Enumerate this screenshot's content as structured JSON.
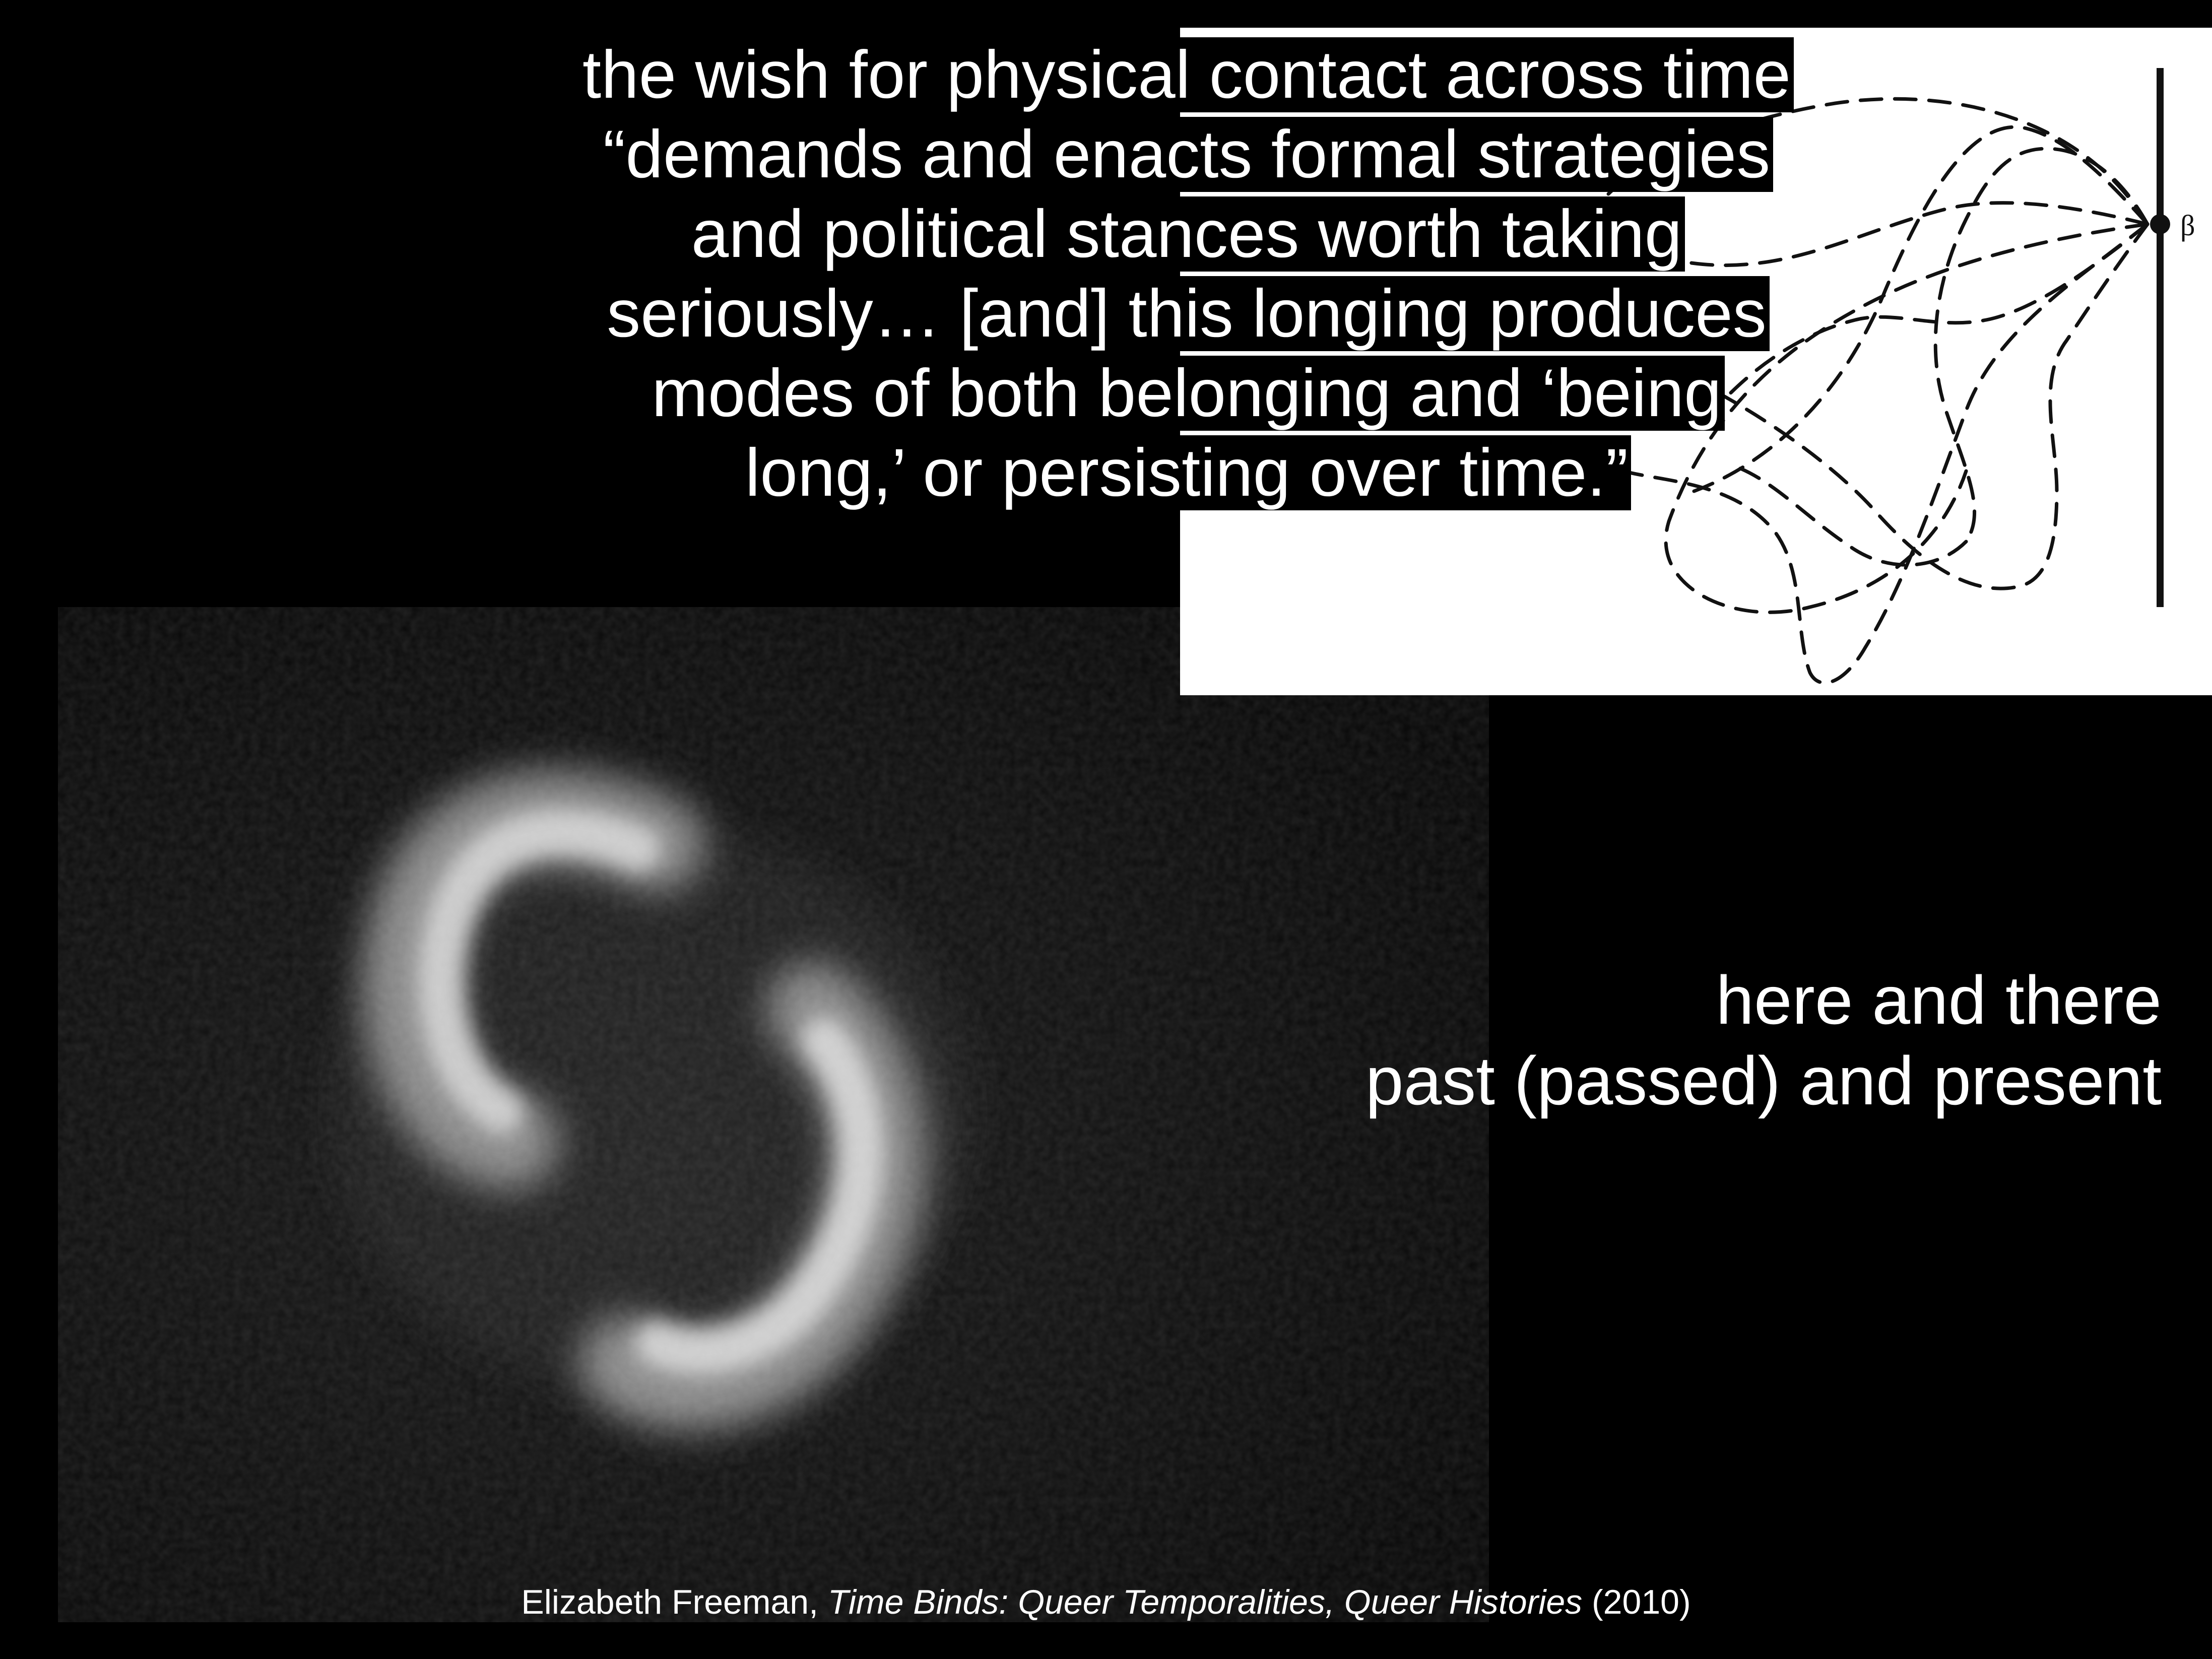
{
  "quote": {
    "lines": [
      "the wish for physical contact across time",
      "“demands and enacts formal strategies",
      "and political stances worth taking",
      "seriously… [and] this longing produces",
      "modes of both belonging and ‘being",
      "long,’ or persisting over time.”"
    ]
  },
  "phrase": {
    "line1": "here and there",
    "line2": "past (passed) and present"
  },
  "diagram": {
    "point_label": "β"
  },
  "citation": {
    "author": "Elizabeth Freeman, ",
    "title": "Time Binds: Queer Temporalities, Queer Histories",
    "year": " (2010)"
  },
  "colors": {
    "background": "#000000",
    "text": "#ffffff",
    "diagram_bg": "#ffffff",
    "diagram_ink": "#111111"
  }
}
